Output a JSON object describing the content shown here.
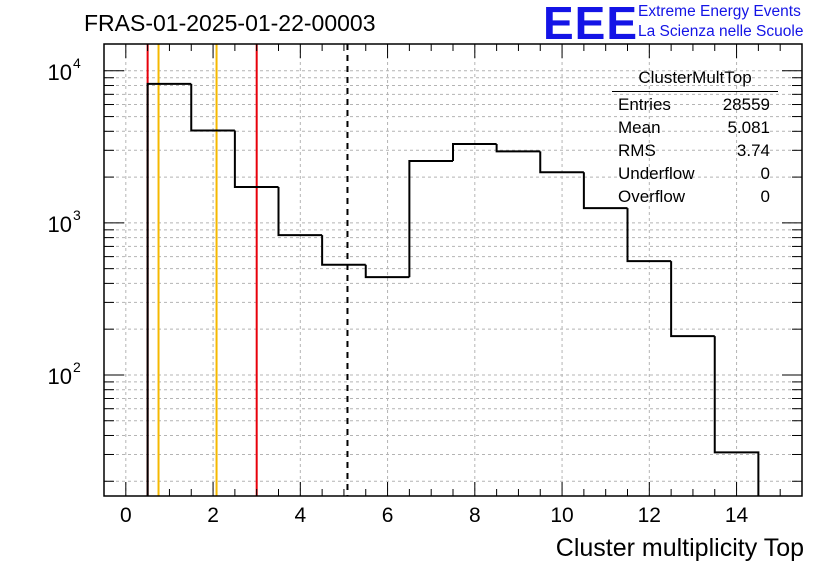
{
  "title": "FRAS-01-2025-01-22-00003",
  "logo": {
    "mark": "EEE",
    "line1": "Extreme Energy Events",
    "line2": "La Scienza nelle Scuole",
    "color": "#1414e6"
  },
  "stats_box": {
    "title": "ClusterMultTop",
    "rows": [
      {
        "label": "Entries",
        "value": "28559"
      },
      {
        "label": "Mean",
        "value": "5.081"
      },
      {
        "label": "RMS",
        "value": "3.74"
      },
      {
        "label": "Underflow",
        "value": "0"
      },
      {
        "label": "Overflow",
        "value": "0"
      }
    ]
  },
  "chart_data": {
    "type": "histogram",
    "title": "FRAS-01-2025-01-22-00003",
    "xlabel": "Cluster multiplicity Top",
    "ylabel": "",
    "xlim": [
      -0.5,
      15.5
    ],
    "ylim": [
      16,
      15000
    ],
    "y_scale": "log",
    "grid": true,
    "bin_edges": [
      0.5,
      1.5,
      2.5,
      3.5,
      4.5,
      5.5,
      6.5,
      7.5,
      8.5,
      9.5,
      10.5,
      11.5,
      12.5,
      13.5,
      14.5
    ],
    "counts": [
      8200,
      4050,
      1720,
      830,
      530,
      440,
      2550,
      3300,
      2950,
      2150,
      1250,
      560,
      180,
      31
    ],
    "x_ticks": [
      "0",
      "2",
      "4",
      "6",
      "8",
      "10",
      "12",
      "14"
    ],
    "x_tick_values": [
      0,
      2,
      4,
      6,
      8,
      10,
      12,
      14
    ],
    "y_ticks": [
      {
        "value": 100,
        "base": "10",
        "exp": "2"
      },
      {
        "value": 1000,
        "base": "10",
        "exp": "3"
      },
      {
        "value": 10000,
        "base": "10",
        "exp": "4"
      }
    ],
    "vertical_lines": [
      {
        "x": 0.5,
        "color": "#e8000b",
        "style": "solid"
      },
      {
        "x": 0.75,
        "color": "#f5b800",
        "style": "solid"
      },
      {
        "x": 2.08,
        "color": "#f5b800",
        "style": "solid"
      },
      {
        "x": 3.0,
        "color": "#e8000b",
        "style": "solid"
      },
      {
        "x": 5.081,
        "color": "#000000",
        "style": "dashed"
      }
    ],
    "colors": {
      "histogram": "#000000",
      "grid": "#b4b4b4"
    }
  }
}
